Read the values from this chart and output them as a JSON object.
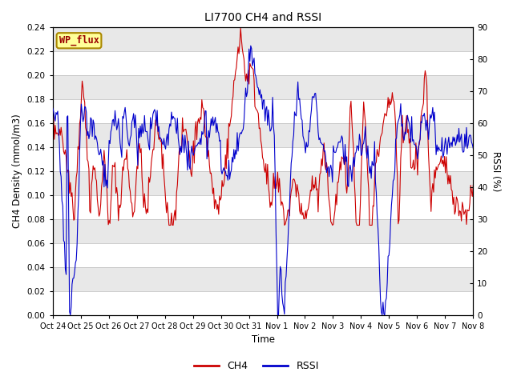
{
  "title": "LI7700 CH4 and RSSI",
  "ylabel_left": "CH4 Density (mmol/m3)",
  "ylabel_right": "RSSI (%)",
  "xlabel": "Time",
  "ylim_left": [
    0,
    0.24
  ],
  "ylim_right": [
    0,
    90
  ],
  "yticks_left": [
    0.0,
    0.02,
    0.04,
    0.06,
    0.08,
    0.1,
    0.12,
    0.14,
    0.16,
    0.18,
    0.2,
    0.22,
    0.24
  ],
  "yticks_right": [
    0,
    10,
    20,
    30,
    40,
    50,
    60,
    70,
    80,
    90
  ],
  "annotation_text": "WP_flux",
  "legend_labels": [
    "CH4",
    "RSSI"
  ],
  "ch4_color": "#CC0000",
  "rssi_color": "#0000CC",
  "background_color": "#E8E8E8",
  "band_color": "#FFFFFF",
  "annotation_bg": "#FFFF99",
  "annotation_border": "#AA8800",
  "x_tick_labels": [
    "Oct 24",
    "Oct 25",
    "Oct 26",
    "Oct 27",
    "Oct 28",
    "Oct 29",
    "Oct 30",
    "Oct 31",
    "Nov 1",
    "Nov 2",
    "Nov 3",
    "Nov 4",
    "Nov 5",
    "Nov 6",
    "Nov 7",
    "Nov 8"
  ],
  "total_days": 15
}
